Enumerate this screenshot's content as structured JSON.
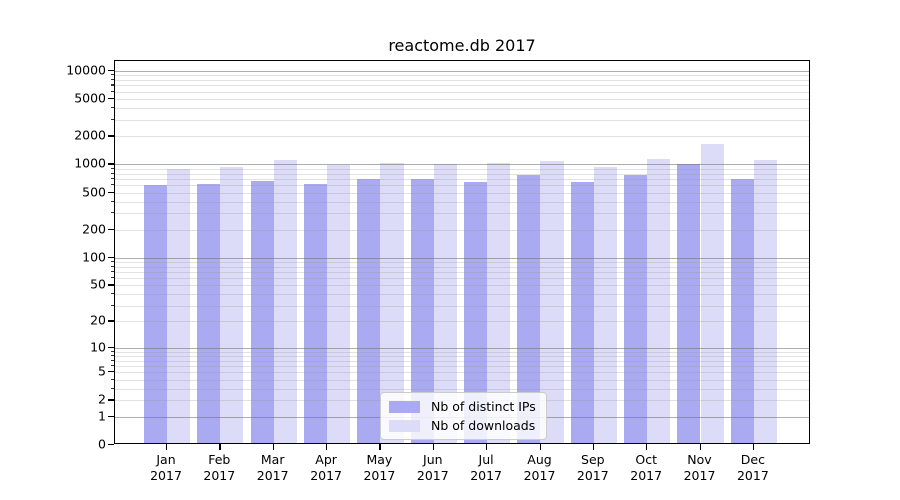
{
  "title": "reactome.db 2017",
  "chart_data": {
    "type": "bar",
    "title": "reactome.db 2017",
    "categories": [
      "Jan 2017",
      "Feb 2017",
      "Mar 2017",
      "Apr 2017",
      "May 2017",
      "Jun 2017",
      "Jul 2017",
      "Aug 2017",
      "Sep 2017",
      "Oct 2017",
      "Nov 2017",
      "Dec 2017"
    ],
    "series": [
      {
        "name": "Nb of distinct IPs",
        "color": "#aaaaf3",
        "values": [
          600,
          615,
          660,
          625,
          695,
          695,
          655,
          765,
          650,
          765,
          1000,
          705
        ]
      },
      {
        "name": "Nb of downloads",
        "color": "#dcdcf9",
        "values": [
          900,
          935,
          1120,
          980,
          1045,
          1020,
          1030,
          1080,
          940,
          1150,
          1650,
          1110
        ]
      }
    ],
    "xlabel": "",
    "ylabel": "",
    "yscale": "log10(1+x)",
    "ylim": [
      0,
      12400
    ],
    "y_ticks": [
      0,
      1,
      2,
      5,
      10,
      20,
      50,
      100,
      200,
      500,
      1000,
      2000,
      5000,
      10000
    ],
    "grid": true,
    "grid_above_bars": true,
    "legend_position": "lower center",
    "colors": {
      "spine": "#000000",
      "grid_major": "#8a8a8a",
      "grid_minor": "#d9d9d9",
      "background": "#ffffff",
      "text": "#000000"
    }
  }
}
